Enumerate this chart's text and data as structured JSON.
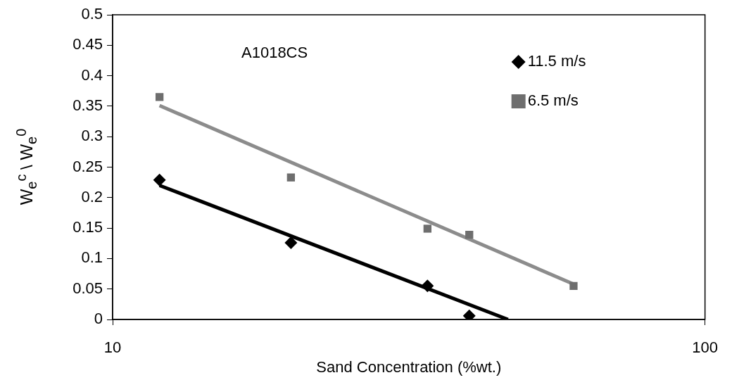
{
  "chart_data": {
    "type": "scatter",
    "xlabel": "Sand Concentration (%wt.)",
    "ylabel": "W$_{e}$$^{c}$ \\ W$_{e}$$^{0}$",
    "annotations": [
      "A1018CS"
    ],
    "log": "x",
    "xlim": [
      10,
      100
    ],
    "xticks": [
      10,
      100
    ],
    "ylim": [
      0,
      0.5
    ],
    "yticks": [
      0,
      0.05,
      0.1,
      0.15,
      0.2,
      0.25,
      0.3,
      0.35,
      0.4,
      0.45,
      0.5
    ],
    "grid": false,
    "legend": "top right",
    "series": [
      {
        "name": "11.5 m/s",
        "color": "#000000",
        "marker": "diamond",
        "x": [
          12,
          20,
          34,
          40
        ],
        "values": [
          0.229,
          0.126,
          0.055,
          0.006
        ]
      },
      {
        "name": "6.5 m/s",
        "color": "#6e6e6e",
        "marker": "square",
        "x": [
          12,
          20,
          34,
          40,
          60
        ],
        "values": [
          0.365,
          0.233,
          0.149,
          0.139,
          0.055
        ]
      },
      {
        "type": "line",
        "color": "#000000",
        "marker": "none",
        "x": [
          12,
          46.5
        ],
        "values": [
          0.22,
          0
        ]
      },
      {
        "type": "line",
        "color": "#8c8c8c",
        "marker": "none",
        "x": [
          12,
          60
        ],
        "values": [
          0.351,
          0.058
        ]
      }
    ]
  }
}
